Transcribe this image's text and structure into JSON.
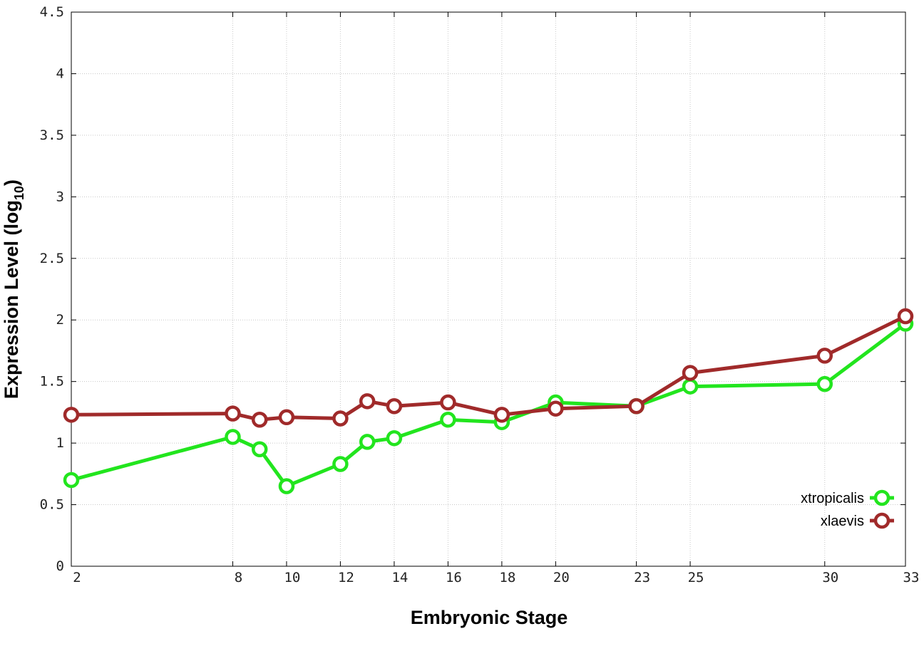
{
  "chart_data": {
    "type": "line",
    "xlabel": "Embryonic Stage",
    "ylabel": "Expression Level (log",
    "ylabel_subscript": "10",
    "ylabel_suffix": ")",
    "x": [
      2,
      8,
      9,
      10,
      12,
      13,
      14,
      16,
      18,
      20,
      23,
      25,
      30,
      33
    ],
    "x_tick_labels": [
      "2",
      "8",
      "10",
      "12",
      "14",
      "16",
      "18",
      "20",
      "23",
      "25",
      "30",
      "33"
    ],
    "y_tick_labels": [
      "0",
      "0.5",
      "1",
      "1.5",
      "2",
      "2.5",
      "3",
      "3.5",
      "4",
      "4.5"
    ],
    "xlim": [
      2,
      33
    ],
    "ylim": [
      0,
      4.5
    ],
    "grid": true,
    "legend_position": "bottom-right",
    "series": [
      {
        "name": "xtropicalis",
        "color": "#22e51e",
        "values": [
          0.7,
          1.05,
          0.95,
          0.65,
          0.83,
          1.01,
          1.04,
          1.19,
          1.17,
          1.33,
          1.3,
          1.46,
          1.48,
          1.97
        ]
      },
      {
        "name": "xlaevis",
        "color": "#a02a2a",
        "values": [
          1.23,
          1.24,
          1.19,
          1.21,
          1.2,
          1.34,
          1.3,
          1.33,
          1.23,
          1.28,
          1.3,
          1.57,
          1.71,
          2.03
        ]
      }
    ]
  }
}
